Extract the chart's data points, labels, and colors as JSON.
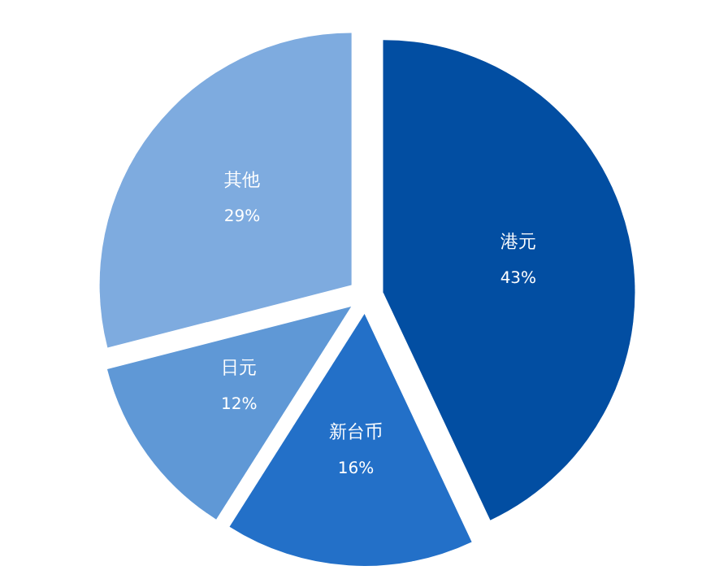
{
  "chart_data": {
    "type": "pie",
    "categories": [
      "港元",
      "新台币",
      "日元",
      "其他"
    ],
    "values": [
      43,
      16,
      12,
      29
    ],
    "value_labels": [
      "43%",
      "16%",
      "12%",
      "29%"
    ],
    "colors": [
      "#024ea2",
      "#2370c8",
      "#5f98d6",
      "#7eabdf"
    ]
  }
}
